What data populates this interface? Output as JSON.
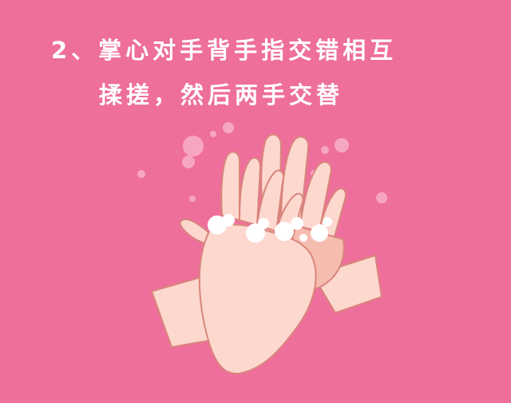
{
  "instruction": {
    "line1": "2、掌心对手背手指交错相互",
    "line2": "揉搓，然后两手交替"
  },
  "illustration": {
    "subject": "hands-washing-illustration"
  },
  "colors": {
    "background": "#ee6f9b",
    "skin": "#fdd8cf",
    "skin_shadow": "#f5bdb0",
    "outline": "#d9857c",
    "foam": "#ffffff",
    "bubble": "#f7a6c2"
  }
}
